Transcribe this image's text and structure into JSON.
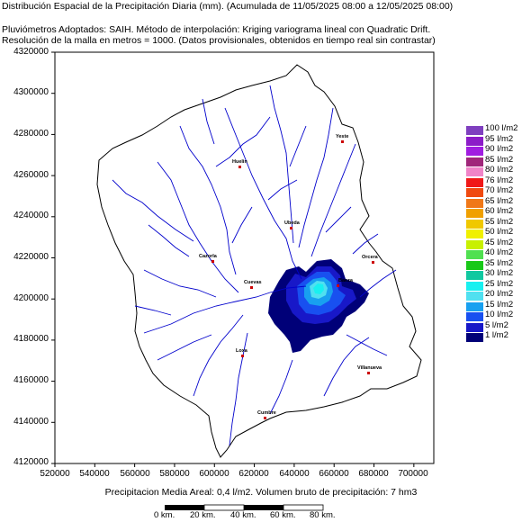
{
  "header": {
    "line1": "Distribución Espacial de la Precipitación Diaria (mm). (Acumulada de 11/05/2025 08:00 a 12/05/2025 08:00)",
    "line2": "Pluviómetros Adoptados: SAIH.  Método de interpolación: Kriging variograma lineal con Quadratic Drift.",
    "line3": "Resolución de la malla en metros = 1000. (Datos provisionales, obtenidos en tiempo real sin contrastar)"
  },
  "axes": {
    "y_ticks": [
      "4320000",
      "4300000",
      "4280000",
      "4260000",
      "4240000",
      "4220000",
      "4200000",
      "4180000",
      "4160000",
      "4140000",
      "4120000"
    ],
    "x_ticks": [
      "520000",
      "540000",
      "560000",
      "580000",
      "600000",
      "620000",
      "640000",
      "660000",
      "680000",
      "700000"
    ],
    "x_range": [
      520000,
      710000
    ],
    "y_range": [
      4120000,
      4320000
    ]
  },
  "legend": [
    {
      "label": "100 l/m2",
      "color": "#7f3fbf"
    },
    {
      "label": "95 l/m2",
      "color": "#8c1cc8"
    },
    {
      "label": "90 l/m2",
      "color": "#a01de0"
    },
    {
      "label": "85 l/m2",
      "color": "#a0267a"
    },
    {
      "label": "80 l/m2",
      "color": "#f084c8"
    },
    {
      "label": "76 l/m2",
      "color": "#f01818"
    },
    {
      "label": "70 l/m2",
      "color": "#f04a10"
    },
    {
      "label": "65 l/m2",
      "color": "#f07818"
    },
    {
      "label": "60 l/m2",
      "color": "#f0a000"
    },
    {
      "label": "55 l/m2",
      "color": "#f0c800"
    },
    {
      "label": "50 l/m2",
      "color": "#f0f000"
    },
    {
      "label": "45 l/m2",
      "color": "#c8f000"
    },
    {
      "label": "40 l/m2",
      "color": "#50e050"
    },
    {
      "label": "35 l/m2",
      "color": "#18c818"
    },
    {
      "label": "30 l/m2",
      "color": "#10c8a0"
    },
    {
      "label": "25 l/m2",
      "color": "#18f0f0"
    },
    {
      "label": "20 l/m2",
      "color": "#50e0f0"
    },
    {
      "label": "15 l/m2",
      "color": "#18a0f0"
    },
    {
      "label": "10 l/m2",
      "color": "#1850f0"
    },
    {
      "label": "5 l/m2",
      "color": "#1818c8"
    },
    {
      "label": "1 l/m2",
      "color": "#000078"
    }
  ],
  "towns": [
    "Huelin",
    "Yeste",
    "Cazorla",
    "Ubeda",
    "Orcera",
    "Baeza",
    "Villanueva",
    "Loxa",
    "Cumbre",
    "Cuevas"
  ],
  "footer": "Precipitacion Media Areal: 0,4 l/m2. Volumen bruto de precipitación: 7 hm3",
  "scale_labels": [
    "0 km.",
    "20 km.",
    "40 km.",
    "60 km.",
    "80 km."
  ],
  "colors": {
    "river": "#0000cc",
    "border": "#000000"
  }
}
